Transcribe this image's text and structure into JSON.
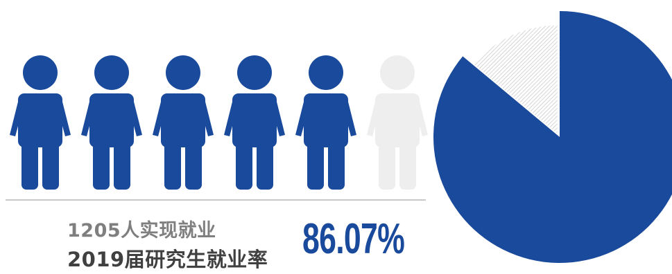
{
  "colors": {
    "primary": "#1a4a9c",
    "inactive": "#eeeeee",
    "hatch": "#c4c4c4",
    "count_text": "#7f7f7f",
    "title_text": "#404040",
    "divider": "#c8c8c8"
  },
  "people": {
    "total_icons": 6,
    "filled_icons": 5,
    "icon": "person-icon"
  },
  "stats": {
    "count_label": "1205人实现就业",
    "title": "2019届研究生就业率",
    "rate_label": "86.07%"
  },
  "chart_data": {
    "type": "pie",
    "values": [
      86.07,
      13.93
    ],
    "slice_styles": [
      "solid",
      "hatched"
    ],
    "start_angle_deg": 0,
    "direction": "clockwise",
    "exploded_slice": 1
  }
}
